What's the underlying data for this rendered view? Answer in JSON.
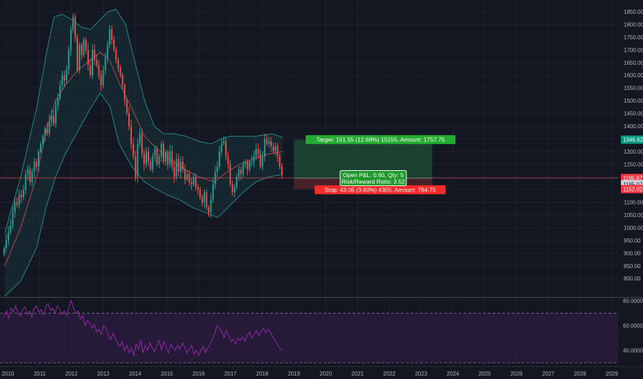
{
  "chart_data": {
    "type": "candlestick",
    "instrument_note": "",
    "price_axis": {
      "ylim": [
        730,
        1880
      ],
      "ticks": [
        800,
        850,
        900,
        950,
        1000,
        1050,
        1100,
        1150,
        1200,
        1250,
        1300,
        1350,
        1400,
        1450,
        1500,
        1550,
        1600,
        1650,
        1700,
        1750,
        1800,
        1850
      ],
      "tick_labels": [
        "800.00",
        "850.00",
        "900.00",
        "950.00",
        "1000.00",
        "1050.00",
        "1100.00",
        "1150.00",
        "1200.00",
        "1250.00",
        "1300.00",
        "1350.00",
        "1400.00",
        "1450.00",
        "1500.00",
        "1550.00",
        "1600.00",
        "1650.00",
        "1700.00",
        "1750.00",
        "1800.00",
        "1850.00"
      ]
    },
    "time_axis": {
      "xlim": [
        2009.75,
        2029.2
      ],
      "years": [
        "2010",
        "2011",
        "2012",
        "2013",
        "2014",
        "2015",
        "2016",
        "2017",
        "2018",
        "2019",
        "2020",
        "2021",
        "2022",
        "2023",
        "2024",
        "2025",
        "2026",
        "2027",
        "2028",
        "2029"
      ]
    },
    "closes": [
      920,
      950,
      980,
      1010,
      1060,
      1100,
      1090,
      1130,
      1120,
      1150,
      1210,
      1230,
      1180,
      1220,
      1260,
      1240,
      1300,
      1330,
      1360,
      1390,
      1370,
      1420,
      1440,
      1410,
      1480,
      1510,
      1560,
      1600,
      1580,
      1620,
      1700,
      1780,
      1830,
      1750,
      1620,
      1720,
      1680,
      1740,
      1700,
      1640,
      1600,
      1700,
      1660,
      1640,
      1600,
      1560,
      1620,
      1670,
      1720,
      1780,
      1740,
      1700,
      1660,
      1630,
      1600,
      1560,
      1500,
      1450,
      1400,
      1330,
      1280,
      1200,
      1330,
      1370,
      1290,
      1250,
      1300,
      1260,
      1230,
      1280,
      1310,
      1250,
      1280,
      1330,
      1260,
      1300,
      1250,
      1300,
      1240,
      1200,
      1270,
      1220,
      1260,
      1230,
      1190,
      1210,
      1180,
      1170,
      1200,
      1160,
      1150,
      1120,
      1100,
      1140,
      1080,
      1060,
      1110,
      1170,
      1220,
      1240,
      1300,
      1330,
      1340,
      1280,
      1250,
      1170,
      1140,
      1160,
      1200,
      1230,
      1210,
      1250,
      1260,
      1230,
      1260,
      1260,
      1280,
      1310,
      1290,
      1240,
      1280,
      1350,
      1330,
      1340,
      1320,
      1300,
      1320,
      1280,
      1240,
      1210
    ],
    "bollinger_bands": {
      "upper": [
        [
          2009.9,
          980
        ],
        [
          2010.4,
          1200
        ],
        [
          2010.9,
          1470
        ],
        [
          2011.2,
          1680
        ],
        [
          2011.45,
          1830
        ],
        [
          2011.7,
          1840
        ],
        [
          2012.0,
          1820
        ],
        [
          2012.3,
          1790
        ],
        [
          2012.6,
          1780
        ],
        [
          2012.9,
          1820
        ],
        [
          2013.15,
          1850
        ],
        [
          2013.4,
          1860
        ],
        [
          2013.7,
          1800
        ],
        [
          2014.0,
          1650
        ],
        [
          2014.3,
          1500
        ],
        [
          2014.6,
          1400
        ],
        [
          2014.9,
          1370
        ],
        [
          2015.2,
          1370
        ],
        [
          2015.6,
          1360
        ],
        [
          2016.0,
          1340
        ],
        [
          2016.4,
          1330
        ],
        [
          2016.7,
          1350
        ],
        [
          2017.0,
          1360
        ],
        [
          2017.4,
          1360
        ],
        [
          2017.8,
          1360
        ],
        [
          2018.3,
          1370
        ],
        [
          2018.65,
          1355
        ]
      ],
      "middle": [
        [
          2009.9,
          850
        ],
        [
          2010.4,
          1000
        ],
        [
          2010.9,
          1200
        ],
        [
          2011.2,
          1380
        ],
        [
          2011.5,
          1500
        ],
        [
          2011.8,
          1560
        ],
        [
          2012.2,
          1620
        ],
        [
          2012.6,
          1660
        ],
        [
          2012.9,
          1690
        ],
        [
          2013.2,
          1660
        ],
        [
          2013.5,
          1570
        ],
        [
          2013.9,
          1470
        ],
        [
          2014.3,
          1360
        ],
        [
          2014.7,
          1310
        ],
        [
          2015.0,
          1280
        ],
        [
          2015.3,
          1250
        ],
        [
          2015.7,
          1220
        ],
        [
          2016.0,
          1200
        ],
        [
          2016.5,
          1180
        ],
        [
          2016.9,
          1220
        ],
        [
          2017.3,
          1250
        ],
        [
          2017.7,
          1270
        ],
        [
          2018.2,
          1290
        ],
        [
          2018.65,
          1300
        ]
      ],
      "lower": [
        [
          2009.9,
          730
        ],
        [
          2010.4,
          790
        ],
        [
          2010.9,
          920
        ],
        [
          2011.2,
          1080
        ],
        [
          2011.5,
          1200
        ],
        [
          2011.8,
          1290
        ],
        [
          2012.2,
          1380
        ],
        [
          2012.6,
          1470
        ],
        [
          2012.9,
          1530
        ],
        [
          2013.2,
          1480
        ],
        [
          2013.5,
          1330
        ],
        [
          2013.9,
          1240
        ],
        [
          2014.3,
          1180
        ],
        [
          2014.7,
          1150
        ],
        [
          2015.0,
          1130
        ],
        [
          2015.4,
          1110
        ],
        [
          2015.8,
          1080
        ],
        [
          2016.2,
          1060
        ],
        [
          2016.6,
          1040
        ],
        [
          2017.0,
          1090
        ],
        [
          2017.4,
          1140
        ],
        [
          2017.8,
          1180
        ],
        [
          2018.2,
          1200
        ],
        [
          2018.65,
          1210
        ]
      ]
    },
    "position_tool": {
      "entry": 1195.07,
      "target": 1346.62,
      "stop": 1152.02,
      "x_start": 2019.0,
      "x_end": 2023.35,
      "target_label": "Target: 151.55 (12.68%) 15155, Amount: 1757.75",
      "center_label_1": "Open P&L: 0.60, Qty: 5",
      "center_label_2": "Risk/Reward Ratio: 3.52",
      "stop_label": "Stop: 43.05 (3.60%) 4305, Amount: 784.75"
    },
    "price_badges": [
      {
        "value": 1346.62,
        "label": "1346.62",
        "color": "#089981"
      },
      {
        "value": 1195.67,
        "label": "1195.67",
        "color": "#f23645"
      },
      {
        "value": 1195.07,
        "label": "1195.07",
        "color": "#cfd2da"
      },
      {
        "value": 1152.02,
        "label": "1152.02",
        "color": "#f23645"
      }
    ],
    "current_price_line": 1195.67,
    "rsi": {
      "ylim": [
        28,
        82
      ],
      "ticks": [
        40,
        60,
        80
      ],
      "tick_labels": [
        "40.0000",
        "60.0000",
        "80.0000"
      ],
      "upper_band": 70,
      "lower_band": 30,
      "values": [
        68,
        72,
        66,
        74,
        71,
        76,
        70,
        68,
        73,
        75,
        69,
        72,
        67,
        74,
        76,
        71,
        73,
        69,
        75,
        78,
        72,
        74,
        70,
        76,
        73,
        69,
        72,
        68,
        75,
        80,
        74,
        70,
        72,
        65,
        68,
        60,
        64,
        62,
        58,
        61,
        55,
        57,
        53,
        60,
        58,
        52,
        49,
        54,
        50,
        46,
        43,
        47,
        40,
        44,
        38,
        42,
        36,
        45,
        41,
        48,
        38,
        44,
        40,
        46,
        42,
        39,
        44,
        48,
        40,
        47,
        43,
        38,
        45,
        42,
        40,
        44,
        41,
        46,
        43,
        38,
        41,
        44,
        37,
        40,
        36,
        40,
        43,
        38,
        42,
        45,
        49,
        54,
        60,
        58,
        55,
        50,
        56,
        52,
        47,
        49,
        45,
        50,
        48,
        51,
        47,
        52,
        55,
        50,
        53,
        56,
        52,
        55,
        58,
        54,
        57,
        55,
        51,
        48,
        45,
        42,
        40
      ],
      "line_color": "#9c27b0"
    },
    "colors": {
      "background": "#131722",
      "up": "#26a69a",
      "down": "#ef5350",
      "band": "#2b8a84",
      "band_fill": "#1b3a3f",
      "middle": "#b84a55",
      "target_zone": "#1d4733",
      "stop_zone": "#4d2228",
      "target_label_bg": "#22ab2e",
      "stop_label_bg": "#f72b2b",
      "rsi_fill": "#2a1d3e"
    }
  }
}
